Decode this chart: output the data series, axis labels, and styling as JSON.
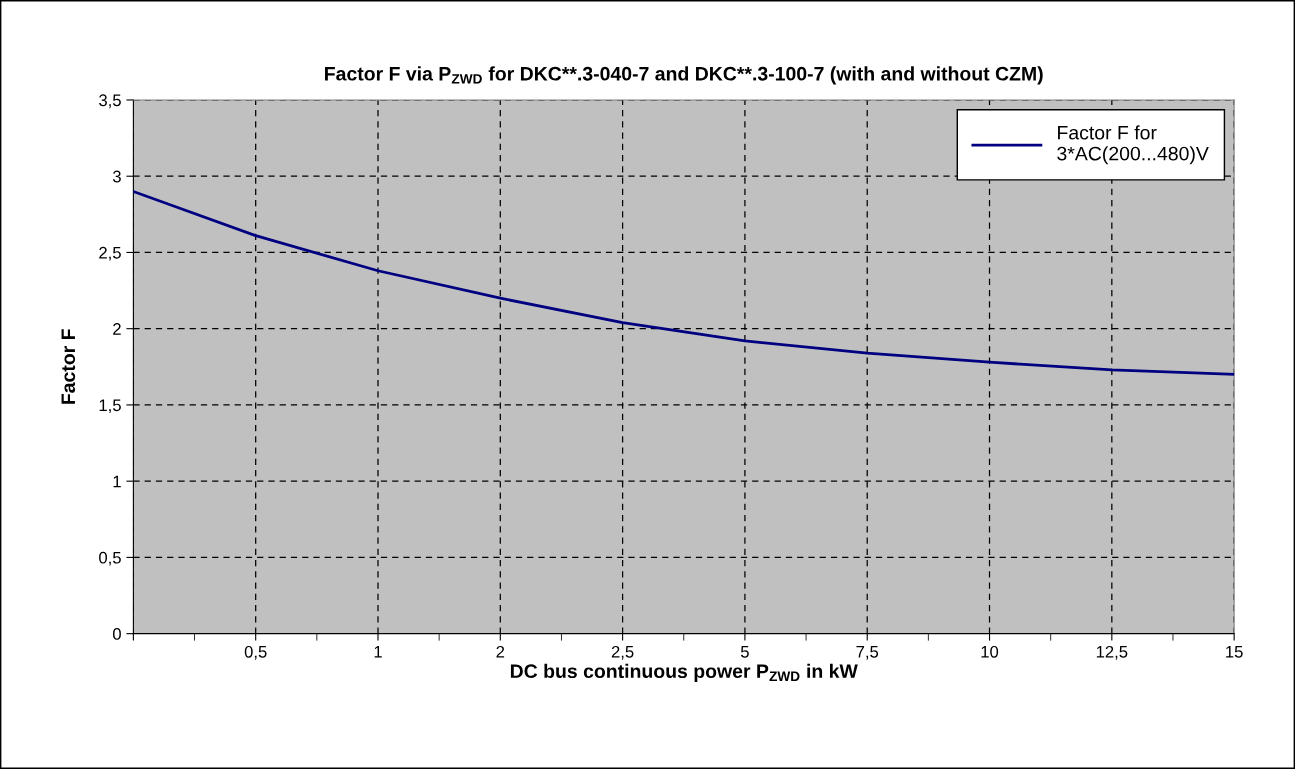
{
  "chart_data": {
    "type": "line",
    "title": "Factor F via P$_{ZWD}$ for DKC**.3-040-7 and DKC**.3-100-7 (with and without CZM)",
    "xlabel": "DC bus continuous power P$_{ZWD}$ in kW",
    "ylabel": "Factor F",
    "categories": [
      null,
      "0,5",
      "1",
      "2",
      "2,5",
      "5",
      "7,5",
      "10",
      "12,5",
      "15"
    ],
    "series": [
      {
        "name": "Factor F for\n3*AC(200...480)V",
        "color": "#000080",
        "values": [
          2.9,
          2.61,
          2.38,
          2.2,
          2.04,
          1.92,
          1.84,
          1.78,
          1.73,
          1.7
        ]
      }
    ],
    "ylim": [
      0,
      3.5
    ],
    "yticks": [
      0,
      {
        "value": 0.5,
        "label": "0,5"
      },
      1,
      {
        "value": 1.5,
        "label": "1,5"
      },
      2,
      {
        "value": 2.5,
        "label": "2,5"
      },
      3,
      {
        "value": 3.5,
        "label": "3,5"
      }
    ],
    "grid": true,
    "legend": "top right",
    "marker": "none",
    "line_style": "solid"
  }
}
